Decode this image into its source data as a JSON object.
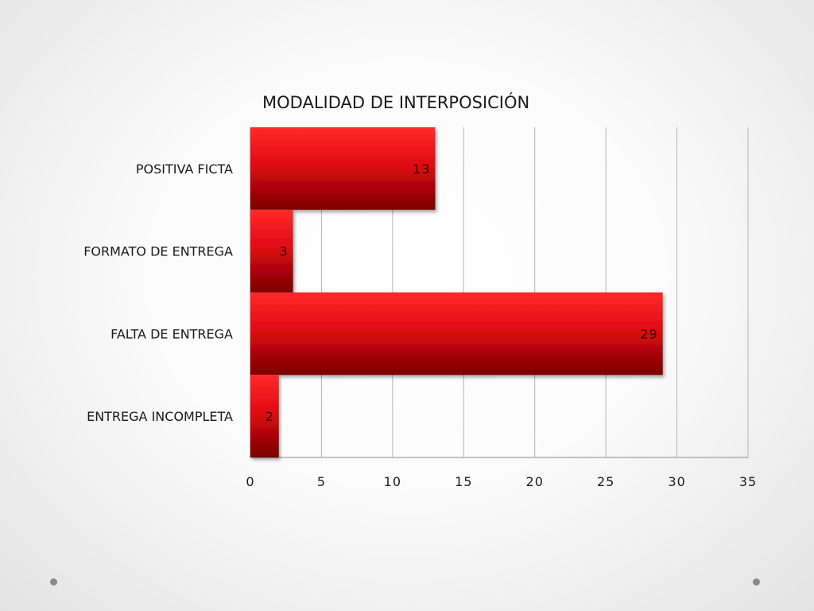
{
  "chart_data": {
    "type": "bar",
    "orientation": "horizontal",
    "title": "MODALIDAD DE INTERPOSICIÓN",
    "categories": [
      "POSITIVA FICTA",
      "FORMATO DE ENTREGA",
      "FALTA DE ENTREGA",
      "ENTREGA INCOMPLETA"
    ],
    "values": [
      13,
      3,
      29,
      2
    ],
    "data_labels": [
      "13",
      "3",
      "29",
      "2"
    ],
    "xlim": [
      0,
      35
    ],
    "x_ticks": [
      "0",
      "5",
      "10",
      "15",
      "20",
      "25",
      "30",
      "35"
    ],
    "xlabel": "",
    "ylabel": "",
    "grid": "vertical",
    "legend": "none",
    "bar_color": "#e00a12",
    "bar_color_dark": "#7a0000",
    "bar_color_light": "#ff2a2a"
  }
}
